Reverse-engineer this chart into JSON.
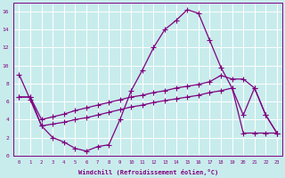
{
  "background_color": "#c8ecec",
  "grid_color": "#c0d8d8",
  "line_color": "#800080",
  "xlabel": "Windchill (Refroidissement éolien,°C)",
  "ylim": [
    0,
    17
  ],
  "xlim": [
    -0.5,
    23.5
  ],
  "yticks": [
    0,
    2,
    4,
    6,
    8,
    10,
    12,
    14,
    16
  ],
  "xticks": [
    0,
    1,
    2,
    3,
    4,
    5,
    6,
    7,
    8,
    9,
    10,
    11,
    12,
    13,
    14,
    15,
    16,
    17,
    18,
    19,
    20,
    21,
    22,
    23
  ],
  "curve1_x": [
    0,
    1,
    2,
    3,
    4,
    5,
    6,
    7,
    8,
    9,
    10,
    11,
    12,
    13,
    14,
    15,
    16,
    17,
    18,
    19,
    20,
    21,
    22,
    23
  ],
  "curve1_y": [
    9.0,
    6.2,
    3.3,
    2.0,
    1.5,
    0.8,
    0.5,
    1.0,
    1.2,
    4.0,
    7.2,
    9.5,
    12.0,
    14.0,
    15.0,
    16.2,
    15.8,
    12.8,
    9.8,
    7.5,
    4.5,
    7.5,
    4.5,
    2.5
  ],
  "curve2_x": [
    0,
    1,
    2,
    3,
    4,
    5,
    6,
    7,
    8,
    9,
    10,
    11,
    12,
    13,
    14,
    15,
    16,
    17,
    18,
    19,
    20,
    21,
    22,
    23
  ],
  "curve2_y": [
    6.5,
    6.5,
    4.0,
    4.3,
    4.6,
    5.0,
    5.3,
    5.6,
    5.9,
    6.2,
    6.5,
    6.7,
    7.0,
    7.2,
    7.5,
    7.7,
    7.9,
    8.2,
    8.9,
    8.5,
    8.5,
    7.5,
    4.5,
    2.5
  ],
  "curve3_x": [
    0,
    1,
    2,
    3,
    4,
    5,
    6,
    7,
    8,
    9,
    10,
    11,
    12,
    13,
    14,
    15,
    16,
    17,
    18,
    19,
    20,
    21,
    22,
    23
  ],
  "curve3_y": [
    6.5,
    6.5,
    3.3,
    3.5,
    3.7,
    4.0,
    4.2,
    4.5,
    4.8,
    5.1,
    5.4,
    5.6,
    5.9,
    6.1,
    6.3,
    6.5,
    6.7,
    7.0,
    7.2,
    7.5,
    2.5,
    2.5,
    2.5,
    2.5
  ]
}
